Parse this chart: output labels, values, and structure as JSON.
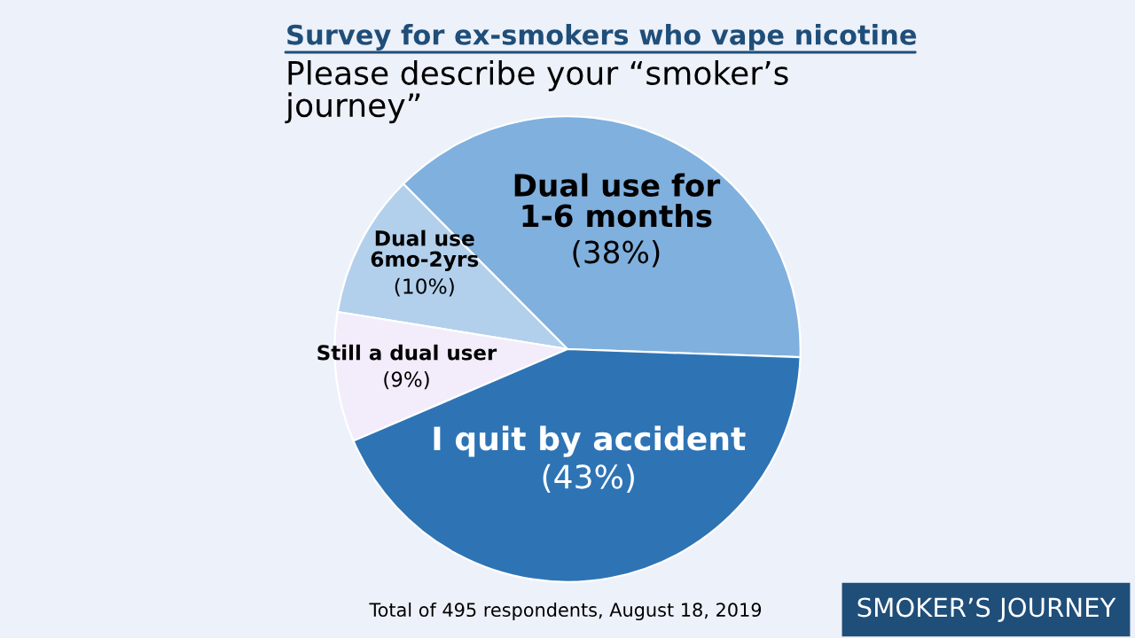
{
  "chart_data": {
    "type": "pie",
    "title": "Survey for ex-smokers who vape nicotine",
    "subtitle": "Please describe your “smoker’s\njourney”",
    "categories": [
      "Dual use for\n1-6 months",
      "Dual use\n6mo-2yrs",
      "Still a dual user",
      "I quit by accident"
    ],
    "values": [
      38,
      10,
      9,
      43
    ],
    "value_labels": [
      "(38%)",
      "(10%)",
      "(9%)",
      "(43%)"
    ],
    "colors": [
      "#80b0de",
      "#b2d0ec",
      "#f2ecfb",
      "#2e74b5"
    ],
    "annotations": [
      "Total of 495 respondents, August 18, 2019",
      "SMOKER’S JOURNEY"
    ]
  }
}
